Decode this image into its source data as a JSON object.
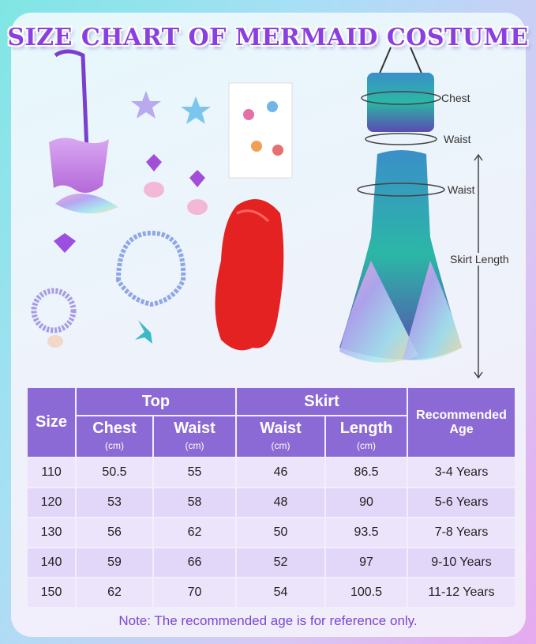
{
  "title": "SIZE CHART OF MERMAID COSTUME",
  "measure_labels": {
    "chest": "Chest",
    "waist_top": "Waist",
    "waist_skirt": "Waist",
    "skirt_length": "Skirt Length"
  },
  "table": {
    "header": {
      "size": "Size",
      "top": "Top",
      "skirt": "Skirt",
      "chest": "Chest",
      "top_waist": "Waist",
      "skirt_waist": "Waist",
      "length": "Length",
      "unit": "(cm)",
      "age": "Recommended Age"
    },
    "rows": [
      {
        "size": "110",
        "chest": "50.5",
        "top_waist": "55",
        "skirt_waist": "46",
        "length": "86.5",
        "age": "3-4 Years"
      },
      {
        "size": "120",
        "chest": "53",
        "top_waist": "58",
        "skirt_waist": "48",
        "length": "90",
        "age": "5-6 Years"
      },
      {
        "size": "130",
        "chest": "56",
        "top_waist": "62",
        "skirt_waist": "50",
        "length": "93.5",
        "age": "7-8 Years"
      },
      {
        "size": "140",
        "chest": "59",
        "top_waist": "66",
        "skirt_waist": "52",
        "length": "97",
        "age": "9-10 Years"
      },
      {
        "size": "150",
        "chest": "62",
        "top_waist": "70",
        "skirt_waist": "54",
        "length": "100.5",
        "age": "11-12 Years"
      }
    ]
  },
  "note": "Note: The recommended age is for reference only.",
  "colors": {
    "header": "#8c6ad6",
    "title": "#8a3fe0",
    "note": "#7a46d0"
  }
}
